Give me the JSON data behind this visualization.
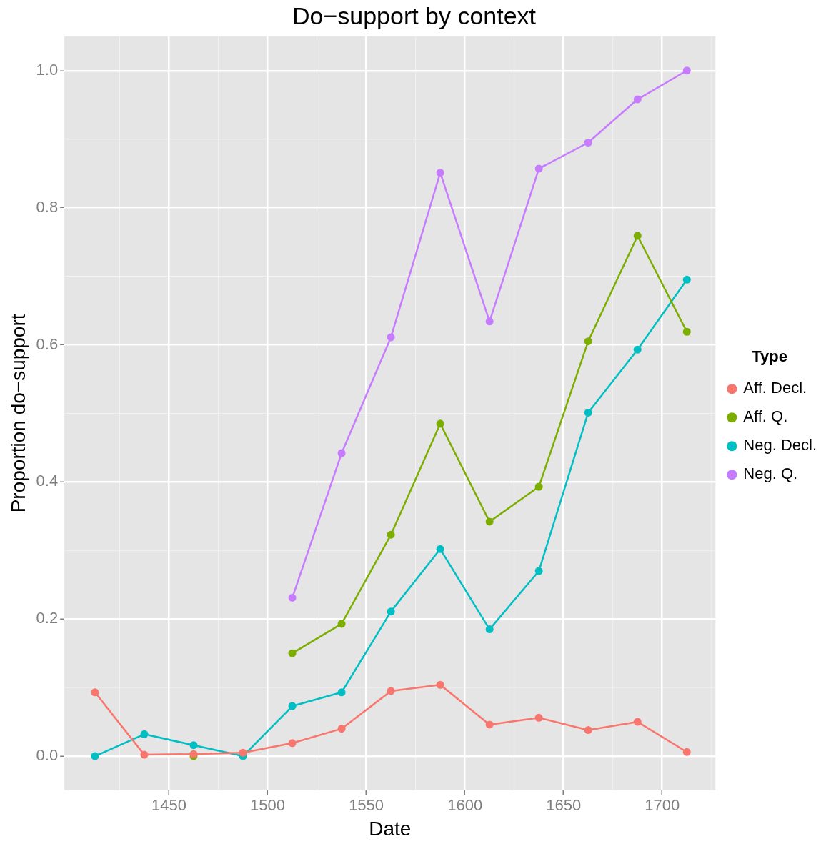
{
  "chart_data": {
    "type": "line",
    "title": "Do−support by context",
    "xlabel": "Date",
    "ylabel": "Proportion do−support",
    "legend_title": "Type",
    "x": [
      1412.5,
      1437.5,
      1462.5,
      1487.5,
      1512.5,
      1537.5,
      1562.5,
      1587.5,
      1612.5,
      1637.5,
      1662.5,
      1687.5,
      1712.5
    ],
    "series": [
      {
        "name": "Aff. Decl.",
        "color": "#f8766d",
        "values": [
          0.093,
          0.002,
          0.003,
          0.005,
          0.019,
          0.04,
          0.095,
          0.104,
          0.046,
          0.056,
          0.038,
          0.05,
          0.006
        ]
      },
      {
        "name": "Aff. Q.",
        "color": "#7cae00",
        "values": [
          null,
          null,
          0,
          null,
          0.15,
          0.193,
          0.323,
          0.485,
          0.342,
          0.393,
          0.605,
          0.759,
          0.619
        ]
      },
      {
        "name": "Neg. Decl.",
        "color": "#00bfc4",
        "values": [
          0,
          0.032,
          0.016,
          0,
          0.073,
          0.093,
          0.211,
          0.302,
          0.185,
          0.27,
          0.501,
          0.593,
          0.695
        ]
      },
      {
        "name": "Neg. Q.",
        "color": "#c77cff",
        "values": [
          null,
          null,
          null,
          null,
          0.231,
          0.442,
          0.611,
          0.851,
          0.634,
          0.857,
          0.895,
          0.958,
          1.0
        ]
      }
    ],
    "xlim": [
      1397,
      1727
    ],
    "xticks": [
      1450,
      1500,
      1550,
      1600,
      1650,
      1700
    ],
    "ylim": [
      -0.05,
      1.05
    ],
    "yticks": [
      {
        "value": 0,
        "label": "0.0"
      },
      {
        "value": 0.2,
        "label": "0.2"
      },
      {
        "value": 0.4,
        "label": "0.4"
      },
      {
        "value": 0.6,
        "label": "0.6"
      },
      {
        "value": 0.8,
        "label": "0.8"
      },
      {
        "value": 1,
        "label": "1.0"
      }
    ],
    "grid": true,
    "legend": "right",
    "marker": "circle",
    "line_style": "solid"
  }
}
